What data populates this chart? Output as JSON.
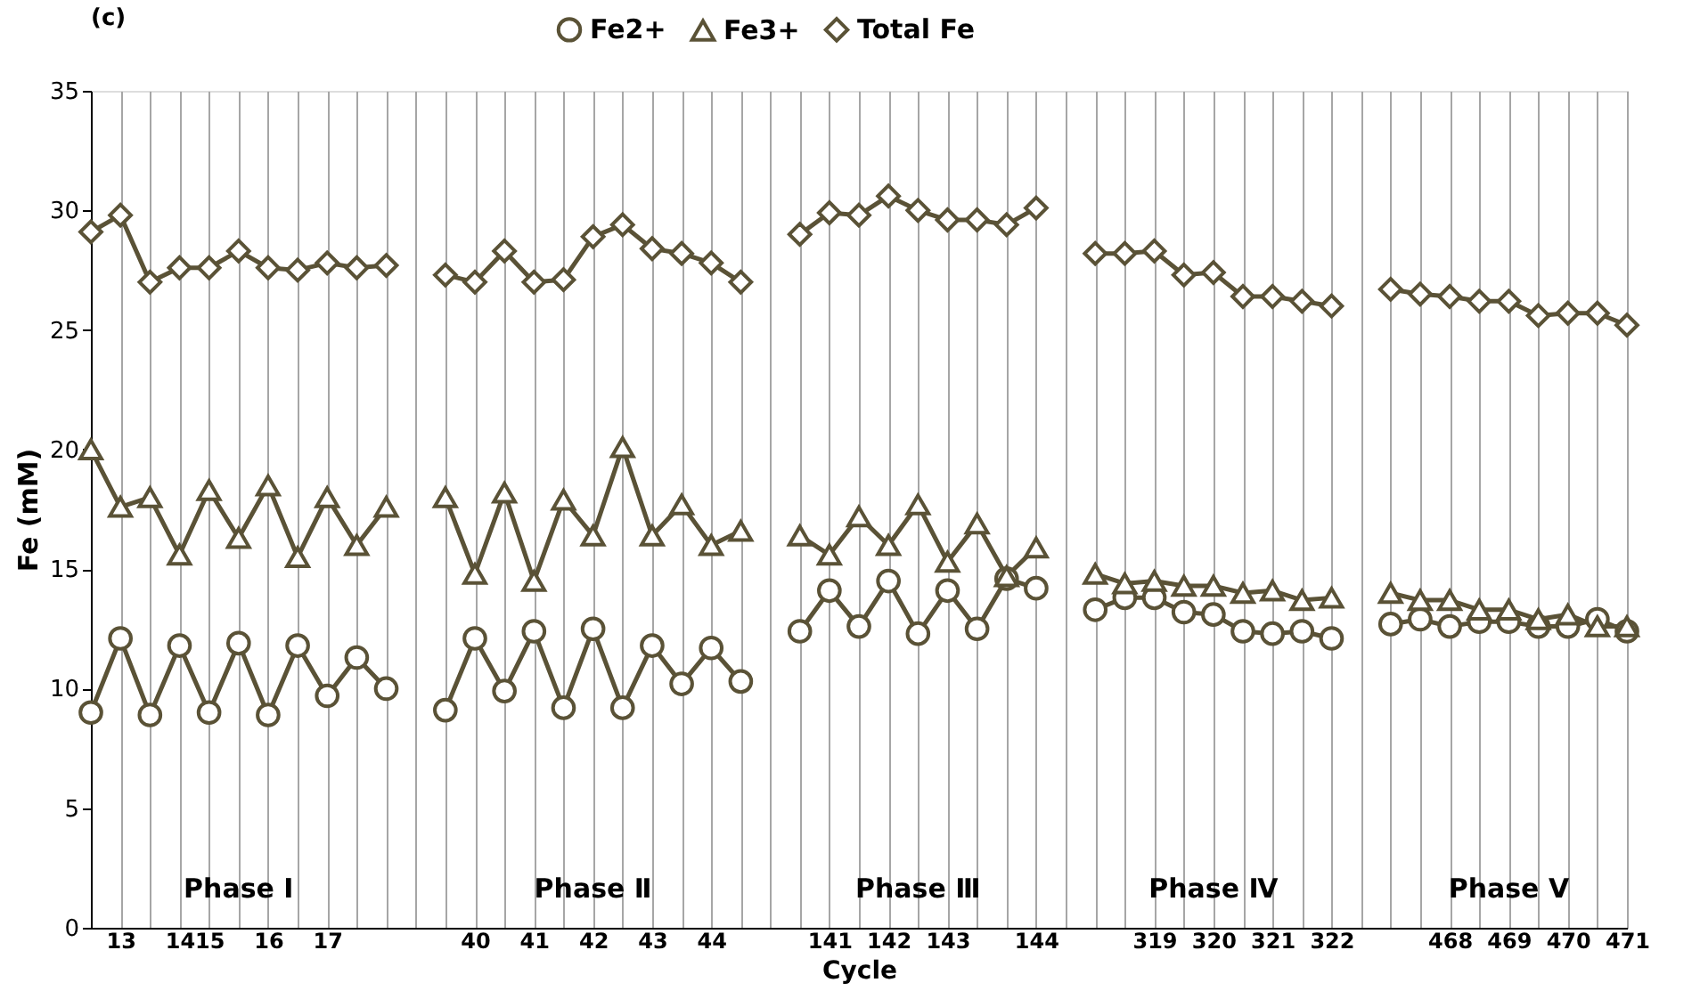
{
  "chart_data": {
    "type": "line",
    "title": "(c)",
    "xlabel": "Cycle",
    "ylabel": "Fe (mM)",
    "categories": [
      null,
      "13",
      null,
      "14",
      "15",
      null,
      "16",
      null,
      "17",
      null,
      null,
      null,
      null,
      "40",
      null,
      "41",
      null,
      "42",
      null,
      "43",
      null,
      "44",
      null,
      null,
      null,
      "141",
      null,
      "142",
      null,
      "143",
      null,
      null,
      "144",
      null,
      null,
      null,
      "319",
      null,
      "320",
      null,
      "321",
      null,
      "322",
      null,
      null,
      null,
      "468",
      null,
      "469",
      null,
      "470",
      null,
      "471"
    ],
    "series": [
      {
        "name": "Fe2+",
        "color": "#5a5236",
        "marker": "circle",
        "values": [
          9.0,
          12.1,
          8.9,
          11.8,
          9.0,
          11.9,
          8.9,
          11.8,
          9.7,
          11.3,
          10.0,
          null,
          9.1,
          12.1,
          9.9,
          12.4,
          9.2,
          12.5,
          9.2,
          11.8,
          10.2,
          11.7,
          10.3,
          null,
          12.4,
          14.1,
          12.6,
          14.5,
          12.3,
          14.1,
          12.5,
          14.6,
          14.2,
          null,
          13.3,
          13.8,
          13.8,
          13.2,
          13.1,
          12.4,
          12.3,
          12.4,
          12.1,
          null,
          12.7,
          12.9,
          12.6,
          12.8,
          12.8,
          12.6,
          12.6,
          12.9,
          12.4
        ]
      },
      {
        "name": "Fe3+",
        "color": "#5a5236",
        "marker": "triangle",
        "values": [
          20.0,
          17.6,
          18.0,
          15.6,
          18.3,
          16.3,
          18.5,
          15.5,
          18.0,
          16.0,
          17.6,
          null,
          18.0,
          14.8,
          18.2,
          14.5,
          17.9,
          16.4,
          20.1,
          16.4,
          17.7,
          16.0,
          16.6,
          null,
          16.4,
          15.6,
          17.2,
          16.0,
          17.7,
          15.3,
          16.9,
          14.7,
          15.9,
          null,
          14.8,
          14.4,
          14.5,
          14.3,
          14.3,
          14.0,
          14.1,
          13.7,
          13.8,
          null,
          14.0,
          13.7,
          13.7,
          13.3,
          13.3,
          12.9,
          13.1,
          12.6,
          12.6
        ]
      },
      {
        "name": "Total Fe",
        "color": "#5a5236",
        "marker": "diamond",
        "values": [
          29.1,
          29.8,
          27.0,
          27.6,
          27.6,
          28.3,
          27.6,
          27.5,
          27.8,
          27.6,
          27.7,
          null,
          27.3,
          27.0,
          28.3,
          27.0,
          27.1,
          28.9,
          29.4,
          28.4,
          28.2,
          27.8,
          27.0,
          null,
          29.0,
          29.9,
          29.8,
          30.6,
          30.0,
          29.6,
          29.6,
          29.4,
          30.1,
          null,
          28.2,
          28.2,
          28.3,
          27.3,
          27.4,
          26.4,
          26.4,
          26.2,
          26.0,
          null,
          26.7,
          26.5,
          26.4,
          26.2,
          26.2,
          25.6,
          25.7,
          25.7,
          25.2
        ]
      }
    ],
    "ylim": [
      0,
      35
    ],
    "yticks": [
      0,
      5,
      10,
      15,
      20,
      25,
      30,
      35
    ],
    "grid": "x",
    "legend": "top",
    "annotations": [
      "Phase Ⅰ",
      "Phase Ⅱ",
      "Phase Ⅲ",
      "Phase Ⅳ",
      "Phase Ⅴ"
    ]
  }
}
